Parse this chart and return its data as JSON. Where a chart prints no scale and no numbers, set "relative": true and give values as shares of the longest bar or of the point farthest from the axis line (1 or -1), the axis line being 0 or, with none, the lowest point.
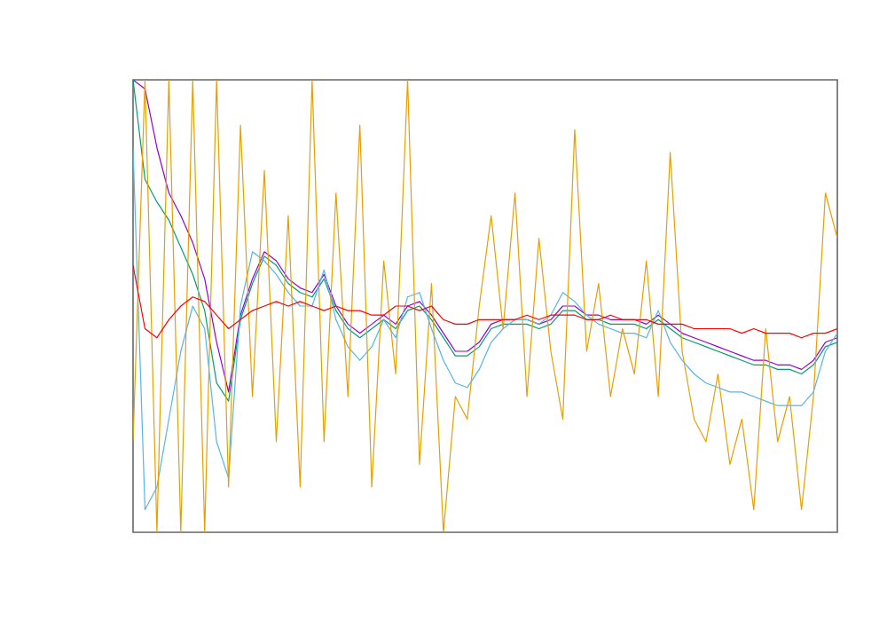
{
  "chart_data": {
    "type": "line",
    "relative": true,
    "categories": [
      null,
      null,
      null,
      null,
      null,
      null,
      null,
      null,
      null,
      null,
      null,
      null,
      null,
      null,
      null,
      null,
      null,
      null,
      null,
      null,
      null,
      null,
      null,
      null,
      null,
      null,
      null,
      null,
      null,
      null,
      null,
      null,
      null,
      null,
      null,
      null,
      null,
      null,
      null,
      null,
      null,
      null,
      null,
      null,
      null,
      null,
      null,
      null,
      null,
      null,
      null,
      null,
      null,
      null,
      null,
      null,
      null,
      null,
      null,
      null
    ],
    "series": [
      {
        "color": "#9400d3",
        "values": [
          1.0,
          0.98,
          0.85,
          0.75,
          0.7,
          0.64,
          0.56,
          0.42,
          0.31,
          0.48,
          0.56,
          0.62,
          0.6,
          0.56,
          0.54,
          0.53,
          0.57,
          0.5,
          0.46,
          0.44,
          0.46,
          0.48,
          0.46,
          0.5,
          0.51,
          0.48,
          0.44,
          0.4,
          0.4,
          0.42,
          0.46,
          0.47,
          0.47,
          0.47,
          0.46,
          0.47,
          0.5,
          0.5,
          0.48,
          0.48,
          0.47,
          0.47,
          0.47,
          0.46,
          0.48,
          0.46,
          0.44,
          0.43,
          0.42,
          0.41,
          0.4,
          0.39,
          0.38,
          0.38,
          0.37,
          0.37,
          0.36,
          0.38,
          0.42,
          0.43
        ]
      },
      {
        "color": "#009e73",
        "values": [
          1.0,
          0.78,
          0.73,
          0.69,
          0.63,
          0.57,
          0.49,
          0.33,
          0.29,
          0.47,
          0.55,
          0.61,
          0.59,
          0.55,
          0.53,
          0.52,
          0.56,
          0.49,
          0.45,
          0.43,
          0.45,
          0.47,
          0.45,
          0.49,
          0.5,
          0.47,
          0.43,
          0.39,
          0.39,
          0.41,
          0.45,
          0.46,
          0.46,
          0.46,
          0.45,
          0.46,
          0.49,
          0.49,
          0.47,
          0.47,
          0.46,
          0.46,
          0.46,
          0.45,
          0.47,
          0.45,
          0.43,
          0.42,
          0.41,
          0.4,
          0.39,
          0.38,
          0.37,
          0.37,
          0.36,
          0.36,
          0.35,
          0.37,
          0.41,
          0.42
        ]
      },
      {
        "color": "#56b4e9",
        "values": [
          0.85,
          0.05,
          0.1,
          0.25,
          0.4,
          0.5,
          0.45,
          0.2,
          0.12,
          0.5,
          0.62,
          0.6,
          0.57,
          0.53,
          0.5,
          0.5,
          0.58,
          0.47,
          0.41,
          0.38,
          0.41,
          0.47,
          0.43,
          0.52,
          0.53,
          0.45,
          0.38,
          0.33,
          0.32,
          0.36,
          0.42,
          0.45,
          0.47,
          0.47,
          0.46,
          0.48,
          0.53,
          0.51,
          0.48,
          0.46,
          0.45,
          0.44,
          0.44,
          0.43,
          0.49,
          0.42,
          0.38,
          0.35,
          0.33,
          0.32,
          0.31,
          0.31,
          0.3,
          0.29,
          0.28,
          0.28,
          0.28,
          0.31,
          0.4,
          0.44
        ]
      },
      {
        "color": "#e69f00",
        "values": [
          0.2,
          1,
          0,
          1,
          0,
          1,
          0,
          1,
          0.1,
          0.9,
          0.3,
          0.8,
          0.2,
          0.7,
          0.1,
          1,
          0.2,
          0.75,
          0.3,
          0.9,
          0.1,
          0.6,
          0.35,
          1,
          0.15,
          0.55,
          0,
          0.3,
          0.25,
          0.5,
          0.7,
          0.45,
          0.75,
          0.3,
          0.65,
          0.4,
          0.25,
          0.89,
          0.4,
          0.55,
          0.3,
          0.45,
          0.35,
          0.6,
          0.3,
          0.84,
          0.4,
          0.25,
          0.2,
          0.35,
          0.15,
          0.25,
          0.05,
          0.45,
          0.2,
          0.3,
          0.05,
          0.3,
          0.75,
          0.65
        ]
      },
      {
        "color": "#ff0000",
        "values": [
          0.59,
          0.45,
          0.43,
          0.47,
          0.5,
          0.52,
          0.51,
          0.48,
          0.45,
          0.47,
          0.49,
          0.5,
          0.51,
          0.5,
          0.51,
          0.5,
          0.49,
          0.5,
          0.49,
          0.49,
          0.48,
          0.48,
          0.5,
          0.5,
          0.49,
          0.5,
          0.47,
          0.46,
          0.46,
          0.47,
          0.47,
          0.47,
          0.47,
          0.48,
          0.47,
          0.48,
          0.48,
          0.48,
          0.47,
          0.47,
          0.48,
          0.47,
          0.47,
          0.47,
          0.46,
          0.46,
          0.46,
          0.45,
          0.45,
          0.45,
          0.45,
          0.44,
          0.45,
          0.44,
          0.44,
          0.44,
          0.43,
          0.44,
          0.44,
          0.45
        ]
      }
    ]
  }
}
